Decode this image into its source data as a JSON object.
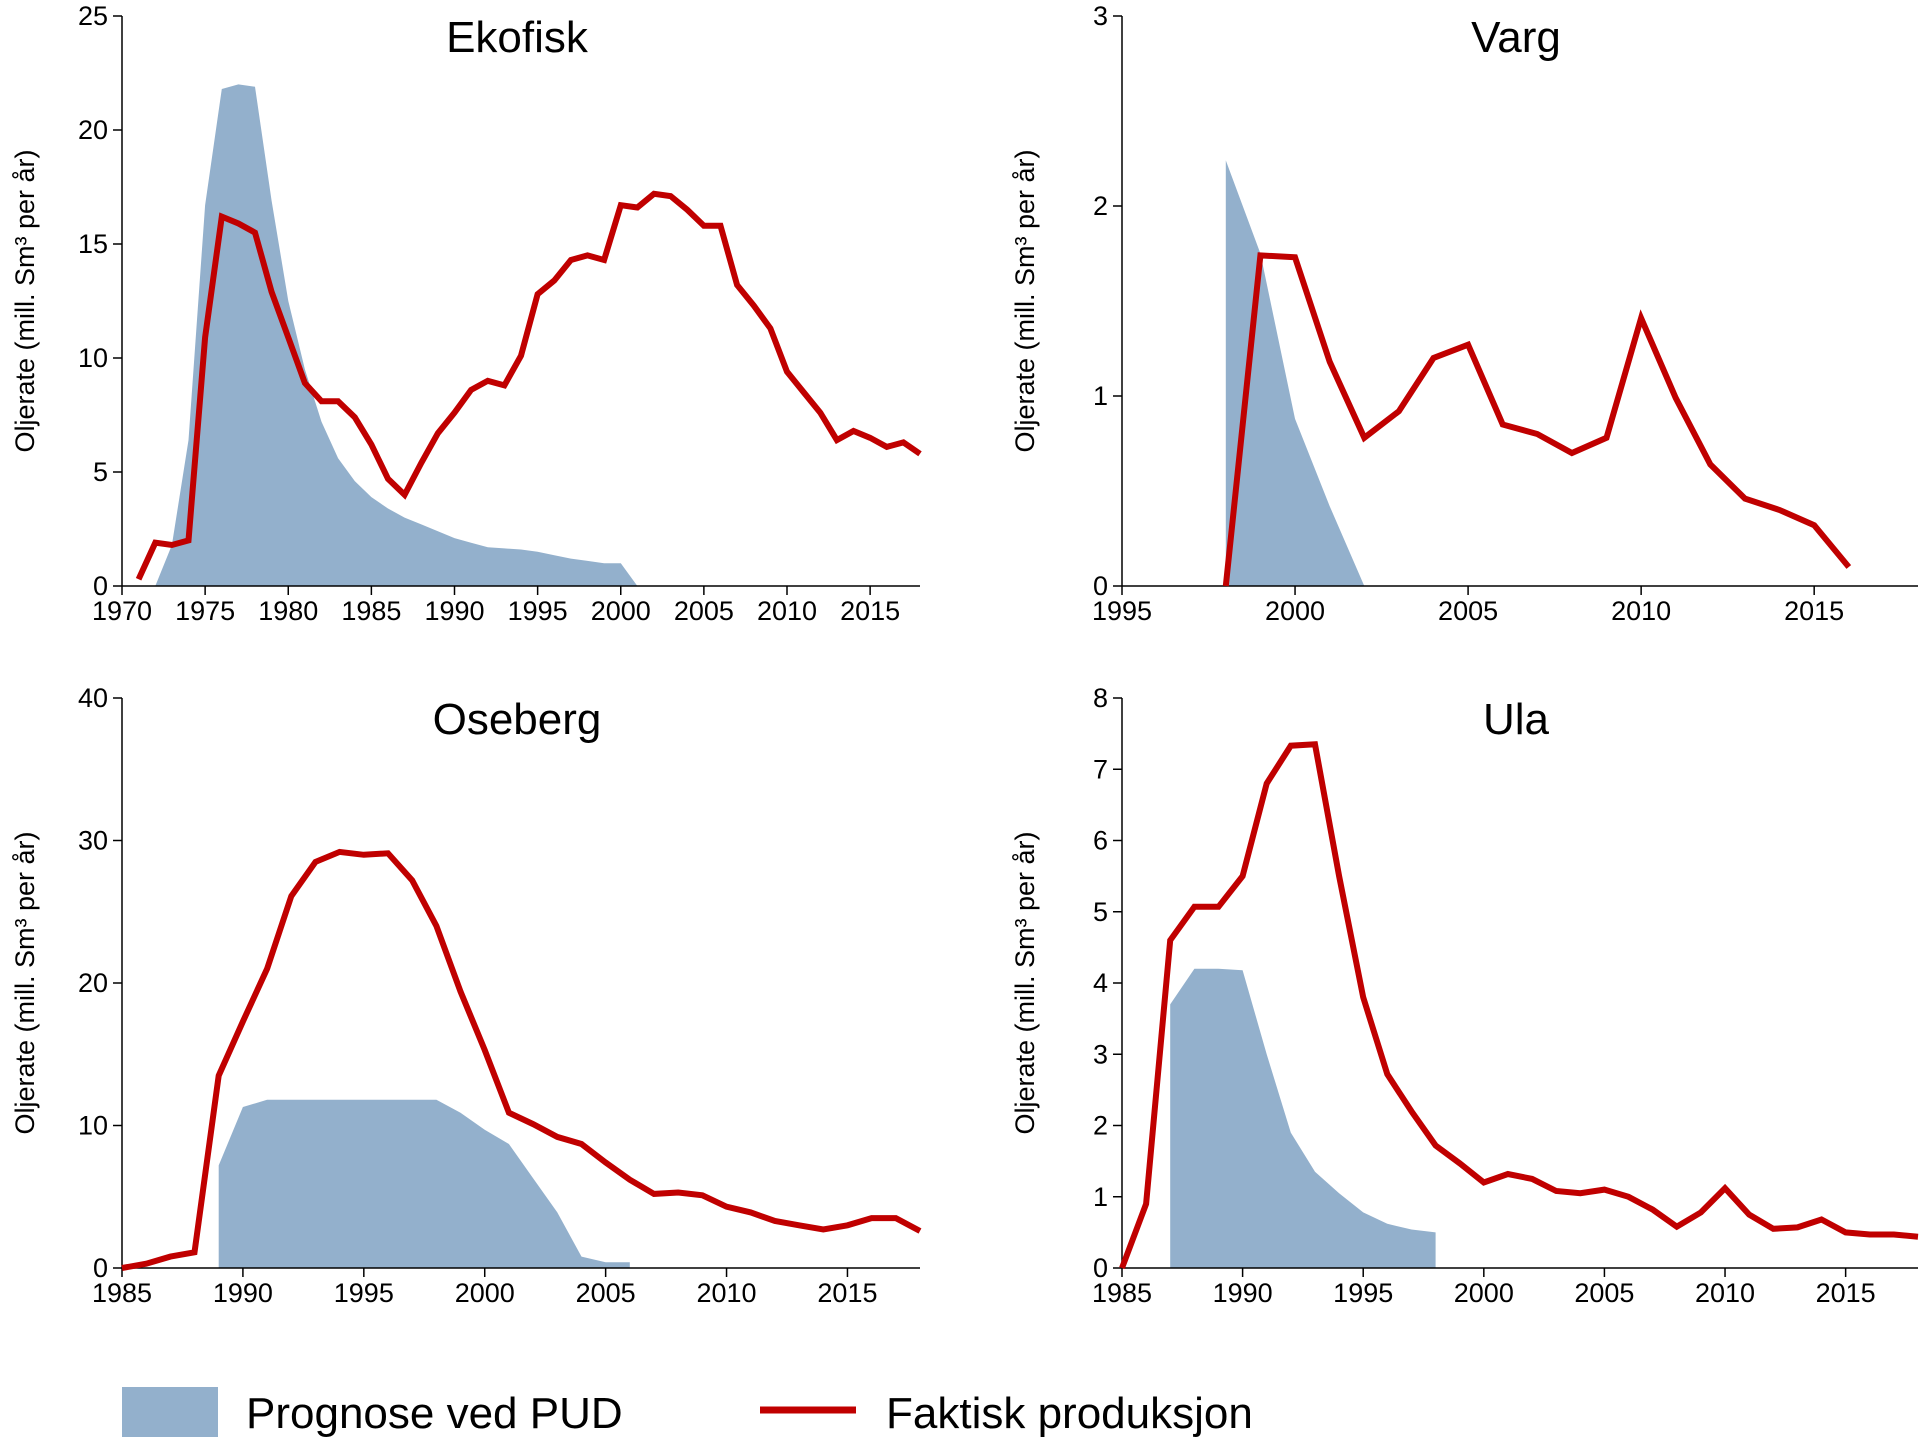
{
  "colors": {
    "forecast": "#93b0cc",
    "actual": "#c00000",
    "axis": "#000000"
  },
  "legend": {
    "forecast_label": "Prognose ved PUD",
    "actual_label": "Faktisk produksjon",
    "placement": "bottom"
  },
  "chart_data": [
    {
      "type": "area",
      "title": "Ekofisk",
      "ylabel": "Oljerate (mill. Sm³ per år)",
      "xlim": [
        1970,
        2018
      ],
      "ylim": [
        0,
        25
      ],
      "xticks": [
        1970,
        1975,
        1980,
        1985,
        1990,
        1995,
        2000,
        2005,
        2010,
        2015
      ],
      "yticks": [
        0,
        5,
        10,
        15,
        20,
        25
      ],
      "series": [
        {
          "name": "Prognose ved PUD",
          "kind": "area",
          "x": [
            1972,
            1973,
            1974,
            1975,
            1976,
            1977,
            1978,
            1979,
            1980,
            1981,
            1982,
            1983,
            1984,
            1985,
            1986,
            1987,
            1988,
            1989,
            1990,
            1991,
            1992,
            1993,
            1994,
            1995,
            1996,
            1997,
            1998,
            1999,
            2000,
            2001
          ],
          "y": [
            0,
            1.8,
            6.4,
            16.7,
            21.8,
            22.0,
            21.9,
            16.9,
            12.5,
            9.5,
            7.2,
            5.6,
            4.6,
            3.9,
            3.4,
            3.0,
            2.7,
            2.4,
            2.1,
            1.9,
            1.7,
            1.65,
            1.6,
            1.5,
            1.35,
            1.2,
            1.1,
            1.0,
            1.0,
            0
          ]
        },
        {
          "name": "Faktisk produksjon",
          "kind": "line",
          "x": [
            1971,
            1972,
            1973,
            1974,
            1975,
            1976,
            1977,
            1978,
            1979,
            1980,
            1981,
            1982,
            1983,
            1984,
            1985,
            1986,
            1987,
            1988,
            1989,
            1990,
            1991,
            1992,
            1993,
            1994,
            1995,
            1996,
            1997,
            1998,
            1999,
            2000,
            2001,
            2002,
            2003,
            2004,
            2005,
            2006,
            2007,
            2008,
            2009,
            2010,
            2011,
            2012,
            2013,
            2014,
            2015,
            2016,
            2017,
            2018
          ],
          "y": [
            0.3,
            1.9,
            1.8,
            2.0,
            10.9,
            16.2,
            15.9,
            15.5,
            12.9,
            10.9,
            8.9,
            8.1,
            8.1,
            7.4,
            6.2,
            4.7,
            4.0,
            5.4,
            6.7,
            7.6,
            8.6,
            9.0,
            8.8,
            10.1,
            12.8,
            13.4,
            14.3,
            14.5,
            14.3,
            16.7,
            16.6,
            17.2,
            17.1,
            16.5,
            15.8,
            15.8,
            13.2,
            12.3,
            11.3,
            9.4,
            8.5,
            7.6,
            6.4,
            6.8,
            6.5,
            6.1,
            6.3,
            5.8
          ]
        }
      ]
    },
    {
      "type": "area",
      "title": "Varg",
      "ylabel": "Oljerate (mill. Sm³ per år)",
      "xlim": [
        1995,
        2018
      ],
      "ylim": [
        0,
        3
      ],
      "xticks": [
        1995,
        2000,
        2005,
        2010,
        2015
      ],
      "yticks": [
        0,
        1,
        2,
        3
      ],
      "series": [
        {
          "name": "Prognose ved PUD",
          "kind": "area",
          "x": [
            1998,
            1998,
            1999,
            2000,
            2001,
            2002
          ],
          "y": [
            0,
            2.24,
            1.75,
            0.88,
            0.42,
            0
          ]
        },
        {
          "name": "Faktisk produksjon",
          "kind": "line",
          "x": [
            1998,
            1999,
            2000,
            2001,
            2002,
            2003,
            2004,
            2005,
            2006,
            2007,
            2008,
            2009,
            2010,
            2011,
            2012,
            2013,
            2014,
            2015,
            2016
          ],
          "y": [
            0,
            1.74,
            1.73,
            1.18,
            0.78,
            0.92,
            1.2,
            1.27,
            0.85,
            0.8,
            0.7,
            0.78,
            1.41,
            0.99,
            0.64,
            0.46,
            0.4,
            0.32,
            0.1
          ]
        }
      ]
    },
    {
      "type": "area",
      "title": "Oseberg",
      "ylabel": "Oljerate (mill. Sm³ per år)",
      "xlim": [
        1985,
        2018
      ],
      "ylim": [
        0,
        40
      ],
      "xticks": [
        1985,
        1990,
        1995,
        2000,
        2005,
        2010,
        2015
      ],
      "yticks": [
        0,
        10,
        20,
        30,
        40
      ],
      "series": [
        {
          "name": "Prognose ved PUD",
          "kind": "area",
          "x": [
            1989,
            1989,
            1990,
            1991,
            1992,
            1993,
            1994,
            1995,
            1996,
            1997,
            1998,
            1999,
            2000,
            2001,
            2002,
            2003,
            2004,
            2005,
            2006,
            2006
          ],
          "y": [
            0,
            7.2,
            11.3,
            11.8,
            11.8,
            11.8,
            11.8,
            11.8,
            11.8,
            11.8,
            11.8,
            10.9,
            9.7,
            8.7,
            6.3,
            3.9,
            0.8,
            0.4,
            0.4,
            0
          ]
        },
        {
          "name": "Faktisk produksjon",
          "kind": "line",
          "x": [
            1985,
            1986,
            1987,
            1988,
            1989,
            1990,
            1991,
            1992,
            1993,
            1994,
            1995,
            1996,
            1997,
            1998,
            1999,
            2000,
            2001,
            2002,
            2003,
            2004,
            2005,
            2006,
            2007,
            2008,
            2009,
            2010,
            2011,
            2012,
            2013,
            2014,
            2015,
            2016,
            2017,
            2018
          ],
          "y": [
            0,
            0.3,
            0.8,
            1.1,
            13.5,
            17.3,
            21.0,
            26.1,
            28.5,
            29.2,
            29.0,
            29.1,
            27.2,
            24.0,
            19.4,
            15.3,
            10.9,
            10.1,
            9.2,
            8.7,
            7.4,
            6.2,
            5.2,
            5.3,
            5.1,
            4.3,
            3.9,
            3.3,
            3.0,
            2.7,
            3.0,
            3.5,
            3.5,
            2.6
          ]
        }
      ]
    },
    {
      "type": "area",
      "title": "Ula",
      "ylabel": "Oljerate (mill. Sm³ per år)",
      "xlim": [
        1985,
        2018
      ],
      "ylim": [
        0,
        8
      ],
      "xticks": [
        1985,
        1990,
        1995,
        2000,
        2005,
        2010,
        2015
      ],
      "yticks": [
        0,
        1,
        2,
        3,
        4,
        5,
        6,
        7,
        8
      ],
      "series": [
        {
          "name": "Prognose ved PUD",
          "kind": "area",
          "x": [
            1987,
            1987,
            1988,
            1989,
            1990,
            1991,
            1992,
            1993,
            1994,
            1995,
            1996,
            1997,
            1998,
            1998
          ],
          "y": [
            0,
            3.7,
            4.2,
            4.2,
            4.18,
            3.0,
            1.9,
            1.35,
            1.05,
            0.78,
            0.62,
            0.54,
            0.5,
            0
          ]
        },
        {
          "name": "Faktisk produksjon",
          "kind": "line",
          "x": [
            1985,
            1986,
            1987,
            1988,
            1989,
            1990,
            1991,
            1992,
            1993,
            1994,
            1995,
            1996,
            1997,
            1998,
            1999,
            2000,
            2001,
            2002,
            2003,
            2004,
            2005,
            2006,
            2007,
            2008,
            2009,
            2010,
            2011,
            2012,
            2013,
            2014,
            2015,
            2016,
            2017,
            2018
          ],
          "y": [
            0,
            0.9,
            4.6,
            5.07,
            5.07,
            5.5,
            6.8,
            7.33,
            7.35,
            5.5,
            3.8,
            2.72,
            2.2,
            1.72,
            1.47,
            1.2,
            1.32,
            1.25,
            1.08,
            1.05,
            1.1,
            1.0,
            0.82,
            0.58,
            0.78,
            1.12,
            0.75,
            0.55,
            0.57,
            0.68,
            0.5,
            0.47,
            0.47,
            0.44
          ]
        }
      ]
    }
  ]
}
